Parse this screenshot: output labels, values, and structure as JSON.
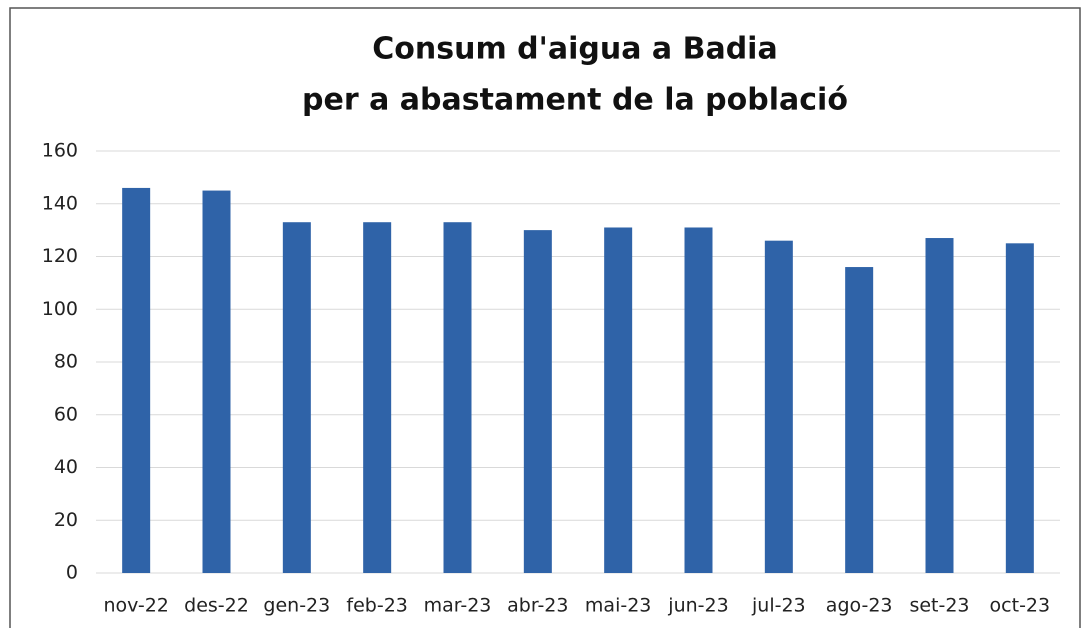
{
  "chart_data": {
    "type": "bar",
    "title": "Consum d'aigua a Badia",
    "subtitle": "per a abastament de la població",
    "categories": [
      "nov-22",
      "des-22",
      "gen-23",
      "feb-23",
      "mar-23",
      "abr-23",
      "mai-23",
      "jun-23",
      "jul-23",
      "ago-23",
      "set-23",
      "oct-23"
    ],
    "values": [
      146,
      145,
      133,
      133,
      133,
      130,
      131,
      131,
      126,
      116,
      127,
      125
    ],
    "color": "#2f63a8",
    "ylim": [
      0,
      160
    ],
    "yticks": [
      0,
      20,
      40,
      60,
      80,
      100,
      120,
      140,
      160
    ],
    "grid": true
  }
}
